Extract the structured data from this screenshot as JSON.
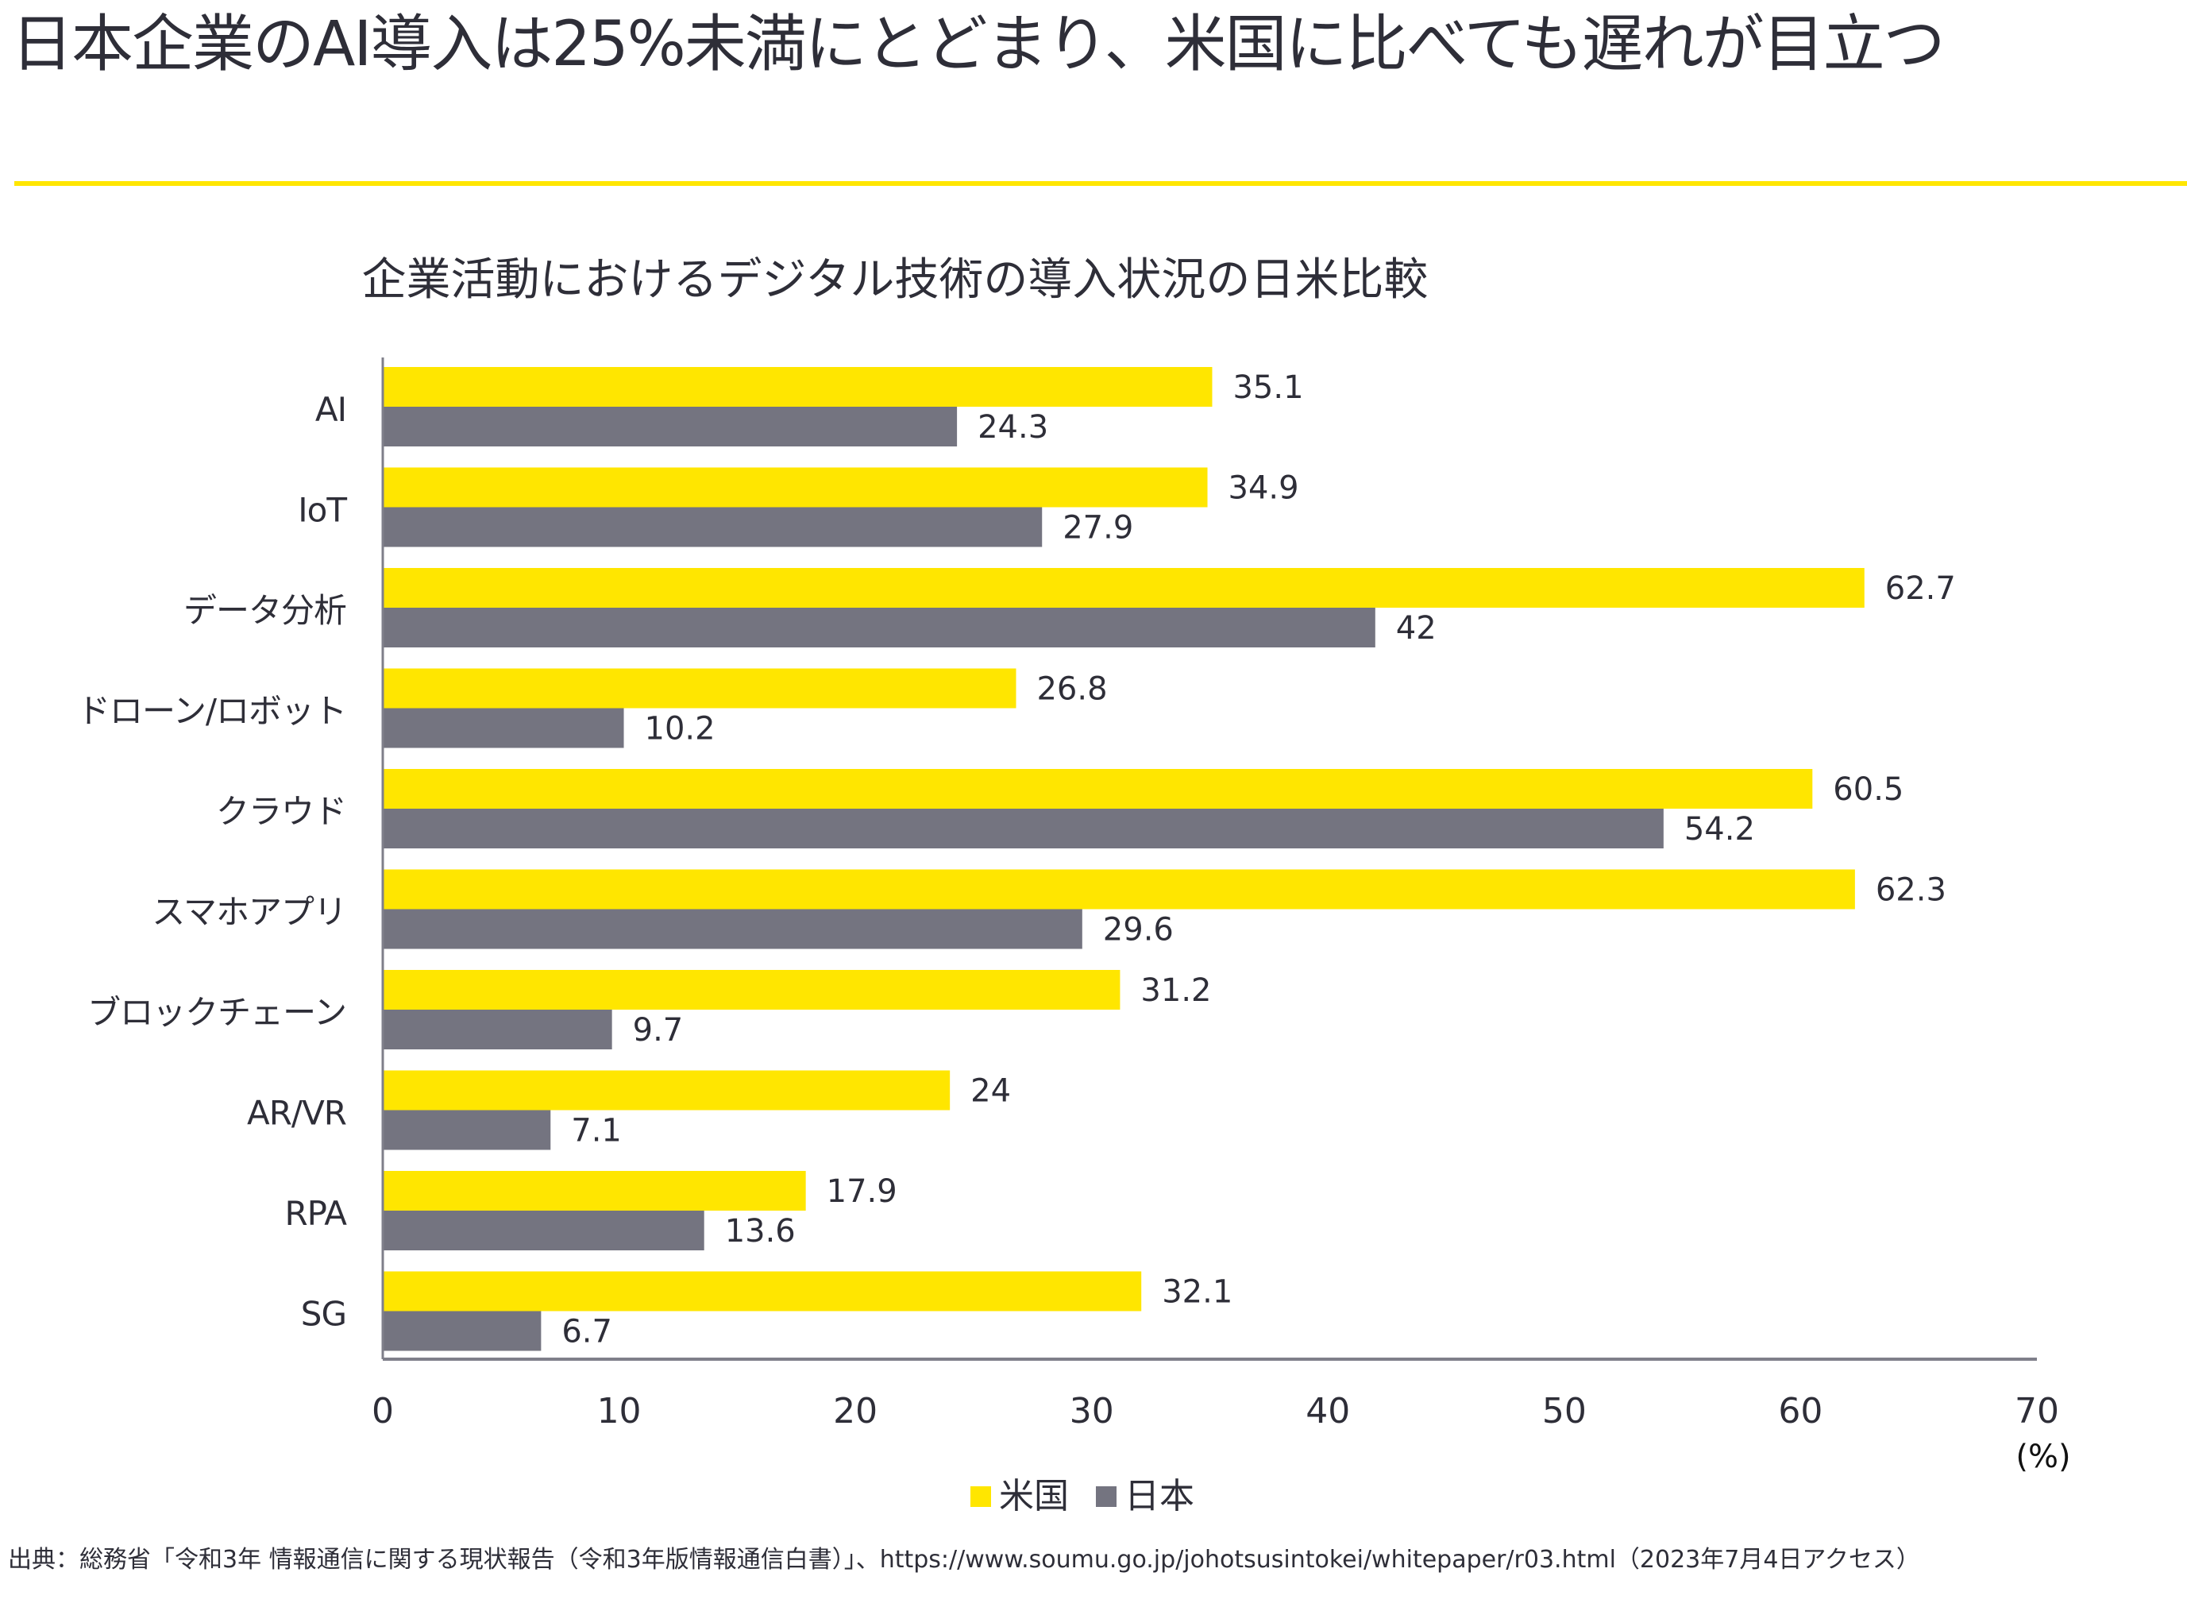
{
  "page": {
    "headline": "日本企業のAI導入は25%未満にとどまり、米国に比べても遅れが目立つ",
    "accent_color": "#ffe600",
    "source_note": "出典：総務省「令和3年 情報通信に関する現状報告（令和3年版情報通信白書）」、https://www.soumu.go.jp/johotsusintokei/whitepaper/r03.html（2023年7月4日アクセス）"
  },
  "chart_data": {
    "type": "bar",
    "orientation": "horizontal",
    "title": "企業活動におけるデジタル技術の導入状況の日米比較",
    "xlabel": "(%)",
    "ylabel": "",
    "xlim": [
      0,
      70
    ],
    "xticks": [
      0,
      10,
      20,
      30,
      40,
      50,
      60,
      70
    ],
    "grid": false,
    "legend_position": "bottom",
    "categories": [
      "AI",
      "IoT",
      "データ分析",
      "ドローン/ロボット",
      "クラウド",
      "スマホアプリ",
      "ブロックチェーン",
      "AR/VR",
      "RPA",
      "SG"
    ],
    "series": [
      {
        "name": "米国",
        "color": "#ffe600",
        "values": [
          35.1,
          34.9,
          62.7,
          26.8,
          60.5,
          62.3,
          31.2,
          24,
          17.9,
          32.1
        ]
      },
      {
        "name": "日本",
        "color": "#747480",
        "values": [
          24.3,
          27.9,
          42,
          10.2,
          54.2,
          29.6,
          9.7,
          7.1,
          13.6,
          6.7
        ]
      }
    ]
  }
}
